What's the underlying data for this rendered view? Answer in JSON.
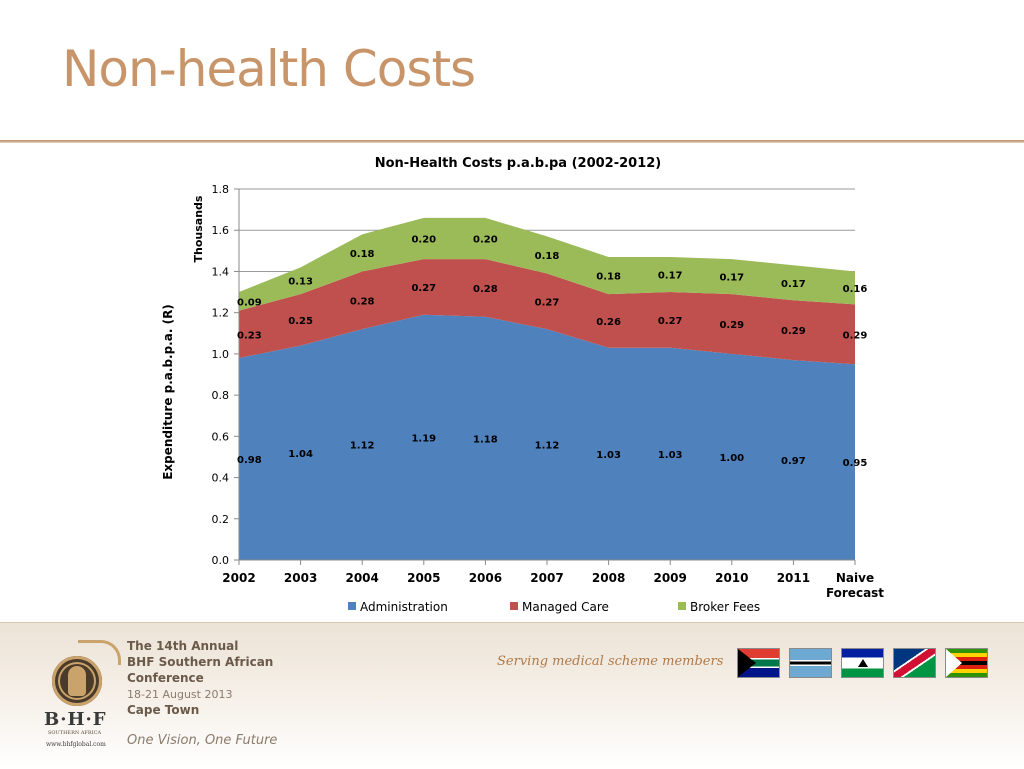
{
  "slide": {
    "title": "Non-health Costs"
  },
  "chart_data": {
    "type": "area",
    "stacked": true,
    "title": "Non-Health Costs p.a.b.pa (2002-2012)",
    "ylabel": "Expenditure p.a.b.p.a. (R)",
    "yunits": "Thousands",
    "xlabel": "",
    "ylim": [
      0,
      1.8
    ],
    "yticks": [
      "0.0",
      "0.2",
      "0.4",
      "0.6",
      "0.8",
      "1.0",
      "1.2",
      "1.4",
      "1.6",
      "1.8"
    ],
    "grid": true,
    "legend_position": "bottom",
    "categories": [
      "2002",
      "2003",
      "2004",
      "2005",
      "2006",
      "2007",
      "2008",
      "2009",
      "2010",
      "2011",
      "Naive Forecast"
    ],
    "series": [
      {
        "name": "Administration",
        "color": "#4f81bd",
        "values": [
          0.98,
          1.04,
          1.12,
          1.19,
          1.18,
          1.12,
          1.03,
          1.03,
          1.0,
          0.97,
          0.95
        ],
        "labels": [
          "0.98",
          "1.04",
          "1.12",
          "1.19",
          "1.18",
          "1.12",
          "1.03",
          "1.03",
          "1.00",
          "0.97",
          "0.95"
        ]
      },
      {
        "name": "Managed Care",
        "color": "#c0504d",
        "values": [
          0.23,
          0.25,
          0.28,
          0.27,
          0.28,
          0.27,
          0.26,
          0.27,
          0.29,
          0.29,
          0.29
        ],
        "labels": [
          "0.23",
          "0.25",
          "0.28",
          "0.27",
          "0.28",
          "0.27",
          "0.26",
          "0.27",
          "0.29",
          "0.29",
          "0.29"
        ]
      },
      {
        "name": "Broker Fees",
        "color": "#9bbb59",
        "values": [
          0.09,
          0.13,
          0.18,
          0.2,
          0.2,
          0.18,
          0.18,
          0.17,
          0.17,
          0.17,
          0.16
        ],
        "labels": [
          "0.09",
          "0.13",
          "0.18",
          "0.20",
          "0.20",
          "0.18",
          "0.18",
          "0.17",
          "0.17",
          "0.17",
          "0.16"
        ]
      }
    ]
  },
  "footer": {
    "conference_lines": [
      "The 14th Annual",
      "BHF Southern African",
      "Conference"
    ],
    "dates": "18-21 August 2013",
    "city": "Cape Town",
    "tagline": "One Vision, One Future",
    "slogan": "Serving medical scheme members",
    "logo_text": "B·H·F",
    "logo_subtitle": "SOUTHERN AFRICA",
    "logo_url": "www.bhfglobal.com",
    "flags": [
      "south-africa-flag",
      "botswana-flag",
      "lesotho-flag",
      "namibia-flag",
      "zimbabwe-flag"
    ]
  }
}
